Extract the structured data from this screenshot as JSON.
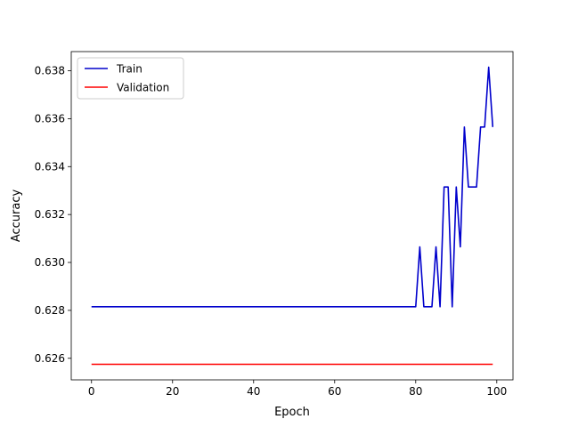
{
  "chart_data": {
    "type": "line",
    "title": "",
    "xlabel": "Epoch",
    "ylabel": "Accuracy",
    "xlim": [
      -5,
      104
    ],
    "ylim": [
      0.6251,
      0.6388
    ],
    "xticks": [
      0,
      20,
      40,
      60,
      80,
      100
    ],
    "xtick_labels": [
      "0",
      "20",
      "40",
      "60",
      "80",
      "100"
    ],
    "yticks": [
      0.626,
      0.628,
      0.63,
      0.632,
      0.634,
      0.636,
      0.638
    ],
    "ytick_labels": [
      "0.626",
      "0.628",
      "0.630",
      "0.632",
      "0.634",
      "0.636",
      "0.638"
    ],
    "grid": false,
    "legend_position": "top-left",
    "series": [
      {
        "name": "Train",
        "color": "#0000cc",
        "points": [
          [
            0,
            0.62815
          ],
          [
            80,
            0.62815
          ],
          [
            81,
            0.63065
          ],
          [
            82,
            0.62815
          ],
          [
            84,
            0.62815
          ],
          [
            85,
            0.63065
          ],
          [
            86,
            0.62815
          ],
          [
            87,
            0.63315
          ],
          [
            88,
            0.63315
          ],
          [
            89,
            0.62815
          ],
          [
            90,
            0.63315
          ],
          [
            91,
            0.63065
          ],
          [
            92,
            0.63565
          ],
          [
            93,
            0.63315
          ],
          [
            95,
            0.63315
          ],
          [
            96,
            0.63565
          ],
          [
            97,
            0.63565
          ],
          [
            98,
            0.63815
          ],
          [
            99,
            0.63565
          ]
        ]
      },
      {
        "name": "Validation",
        "color": "#ff0000",
        "points": [
          [
            0,
            0.62575
          ],
          [
            99,
            0.62575
          ]
        ]
      }
    ]
  }
}
